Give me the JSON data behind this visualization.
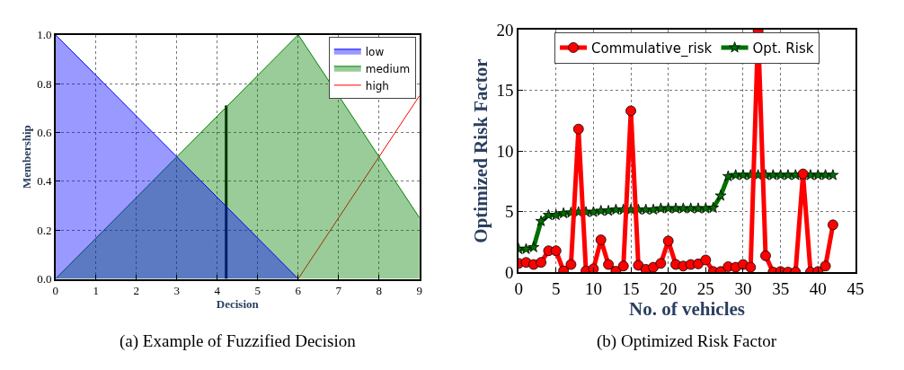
{
  "chart_data": [
    {
      "type": "area",
      "xlabel": "Decision",
      "ylabel": "Membership",
      "annotations": [
        "(a) Example of Fuzzified Decision"
      ],
      "xlim": [
        0,
        9
      ],
      "xticks": [
        0,
        1,
        2,
        3,
        4,
        5,
        6,
        7,
        8,
        9
      ],
      "ylim": [
        0,
        1
      ],
      "yticks": [
        {
          "value": 0,
          "label": "0.0"
        },
        {
          "value": 0.2,
          "label": "0.2"
        },
        {
          "value": 0.4,
          "label": "0.4"
        },
        {
          "value": 0.6,
          "label": "0.6"
        },
        {
          "value": 0.8,
          "label": "0.8"
        },
        {
          "value": 1,
          "label": "1.0"
        }
      ],
      "grid": true,
      "legend": "top right",
      "marker": "none",
      "series": [
        {
          "name": "low",
          "color": "#0000ff",
          "x": [
            0,
            6
          ],
          "values": [
            1,
            0
          ]
        },
        {
          "name": "medium",
          "color": "#008000",
          "x": [
            0,
            6,
            9
          ],
          "values": [
            0,
            1,
            0.25
          ]
        },
        {
          "name": "high",
          "type": "line",
          "color": "#ff0000",
          "x": [
            6,
            9
          ],
          "values": [
            0,
            0.75
          ]
        },
        {
          "type": "line",
          "color": "#000000",
          "x": [
            4.22,
            4.22
          ],
          "values": [
            0,
            0.71
          ]
        }
      ]
    },
    {
      "type": "line",
      "xlabel": "No. of vehicles",
      "ylabel": "Optimized Risk Factor",
      "annotations": [
        "(b) Optimized Risk Factor"
      ],
      "xlim": [
        0,
        45
      ],
      "xticks": [
        0,
        5,
        10,
        15,
        20,
        25,
        30,
        35,
        40,
        45
      ],
      "ylim": [
        0,
        20
      ],
      "yticks": [
        0,
        5,
        10,
        15,
        20
      ],
      "grid": true,
      "legend": "top",
      "x": [
        0,
        1,
        2,
        3,
        4,
        5,
        6,
        7,
        8,
        9,
        10,
        11,
        12,
        13,
        14,
        15,
        16,
        17,
        18,
        19,
        20,
        21,
        22,
        23,
        24,
        25,
        26,
        27,
        28,
        29,
        30,
        31,
        32,
        33,
        34,
        35,
        36,
        37,
        38,
        39,
        40,
        41,
        42
      ],
      "series": [
        {
          "name": "Commulative_risk",
          "color": "#ff0000",
          "marker": "circle",
          "values": [
            0.72,
            0.8,
            0.63,
            0.8,
            1.76,
            1.76,
            0.1,
            0.63,
            11.8,
            0.1,
            0.27,
            2.66,
            0.63,
            0.07,
            0.5,
            13.3,
            0.56,
            0.23,
            0.4,
            0.72,
            2.57,
            0.63,
            0.5,
            0.63,
            0.68,
            1.0,
            0.05,
            0.05,
            0.45,
            0.4,
            0.63,
            0.4,
            19.9,
            1.35,
            0,
            0.05,
            0,
            0,
            8.1,
            0,
            0.05,
            0.5,
            3.9
          ]
        },
        {
          "name": "Opt. Risk",
          "color": "#007000",
          "marker": "star",
          "values": [
            1.9,
            1.9,
            2.05,
            4.2,
            4.7,
            4.7,
            4.85,
            4.9,
            4.95,
            4.95,
            4.95,
            5.05,
            5.05,
            5.15,
            5.15,
            5.15,
            5.15,
            5.15,
            5.15,
            5.25,
            5.25,
            5.25,
            5.25,
            5.25,
            5.25,
            5.25,
            5.3,
            6.3,
            7.9,
            8.0,
            8.0,
            8.0,
            8.0,
            8.0,
            8.0,
            8.0,
            8.0,
            8.0,
            8.0,
            8.0,
            8.0,
            8.0,
            8.0
          ]
        }
      ]
    }
  ]
}
